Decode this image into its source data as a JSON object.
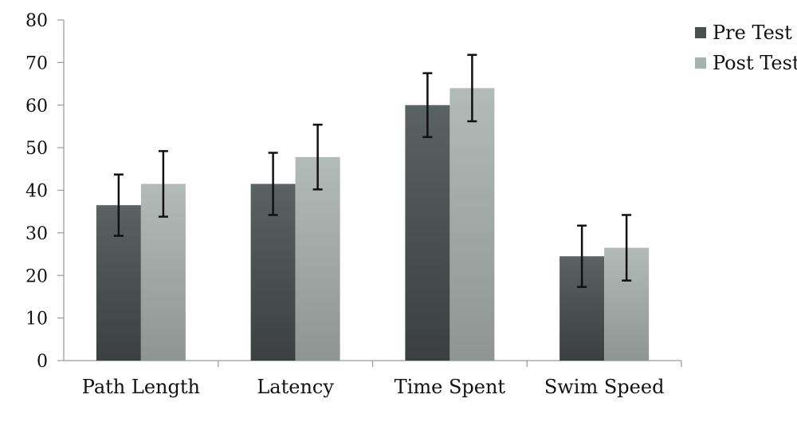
{
  "chart_data": {
    "type": "bar",
    "categories": [
      "Path Length",
      "Latency",
      "Time Spent",
      "Swim Speed"
    ],
    "series": [
      {
        "name": "Pre Test",
        "values": [
          36.5,
          41.5,
          60,
          24.5
        ],
        "error": [
          7.2,
          7.3,
          7.5,
          7.2
        ],
        "color": "#4a5050"
      },
      {
        "name": "Post Test",
        "values": [
          41.5,
          47.8,
          64,
          26.5
        ],
        "error": [
          7.7,
          7.6,
          7.8,
          7.7
        ],
        "color": "#a9b1ae"
      }
    ],
    "yticks": [
      "0",
      "10",
      "20",
      "30",
      "40",
      "50",
      "60",
      "70",
      "80"
    ],
    "ylim": [
      0,
      80
    ],
    "legend_position": "top-right",
    "grid": false
  }
}
